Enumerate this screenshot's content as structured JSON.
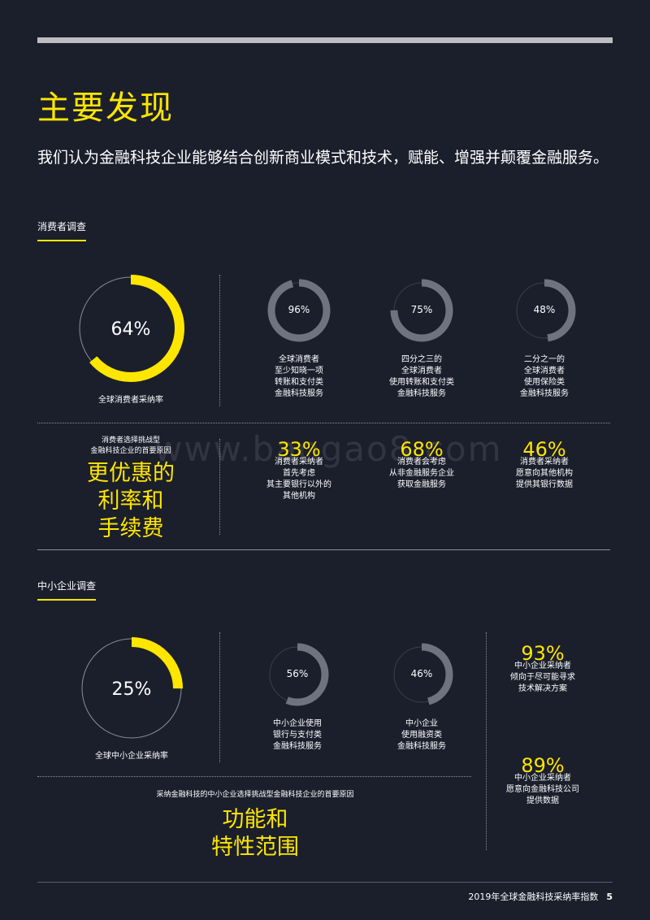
{
  "title": "主要发现",
  "intro": "我们认为金融科技企业能够结合创新商业模式和技术，赋能、增强并颠覆金融服务。",
  "watermark": "www.baogao8.com",
  "colors": {
    "accent": "#ffe600",
    "ring_gray": "#6f7380",
    "background": "#1b1f2c"
  },
  "consumer": {
    "label": "消费者调查",
    "main_ring": {
      "value": "64%",
      "fraction": 0.64,
      "caption": "全球消费者采纳率"
    },
    "rings": [
      {
        "value": "96%",
        "fraction": 0.96,
        "lines": [
          "全球消费者",
          "至少知晓一项",
          "转账和支付类",
          "金融科技服务"
        ]
      },
      {
        "value": "75%",
        "fraction": 0.75,
        "lines": [
          "四分之三的",
          "全球消费者",
          "使用转账和支付类",
          "金融科技服务"
        ]
      },
      {
        "value": "48%",
        "fraction": 0.48,
        "lines": [
          "二分之一的",
          "全球消费者",
          "使用保险类",
          "金融科技服务"
        ]
      }
    ],
    "reason_title_lines": [
      "消费者选择挑战型",
      "金融科技企业的首要原因"
    ],
    "reason_big_lines": [
      "更优惠的",
      "利率和",
      "手续费"
    ],
    "stats": [
      {
        "value": "33%",
        "lines": [
          "消费者采纳者",
          "首先考虑",
          "其主要银行以外的",
          "其他机构"
        ]
      },
      {
        "value": "68%",
        "lines": [
          "消费者会考虑",
          "从非金融服务企业",
          "获取金融服务"
        ]
      },
      {
        "value": "46%",
        "lines": [
          "消费者采纳者",
          "愿意向其他机构",
          "提供其银行数据"
        ]
      }
    ]
  },
  "sme": {
    "label": "中小企业调查",
    "main_ring": {
      "value": "25%",
      "fraction": 0.25,
      "caption": "全球中小企业采纳率"
    },
    "rings": [
      {
        "value": "56%",
        "fraction": 0.56,
        "lines": [
          "中小企业使用",
          "银行与支付类",
          "金融科技服务"
        ]
      },
      {
        "value": "46%",
        "fraction": 0.46,
        "lines": [
          "中小企业",
          "使用融资类",
          "金融科技服务"
        ]
      }
    ],
    "reason_title": "采纳金融科技的中小企业选择挑战型金融科技企业的首要原因",
    "reason_big_lines": [
      "功能和",
      "特性范围"
    ],
    "stats": [
      {
        "value": "93%",
        "lines": [
          "中小企业采纳者",
          "倾向于尽可能寻求",
          "技术解决方案"
        ]
      },
      {
        "value": "89%",
        "lines": [
          "中小企业采纳者",
          "愿意向金融科技公司",
          "提供数据"
        ]
      }
    ]
  },
  "footer": {
    "text": "2019年全球金融科技采纳率指数",
    "page": "5"
  }
}
